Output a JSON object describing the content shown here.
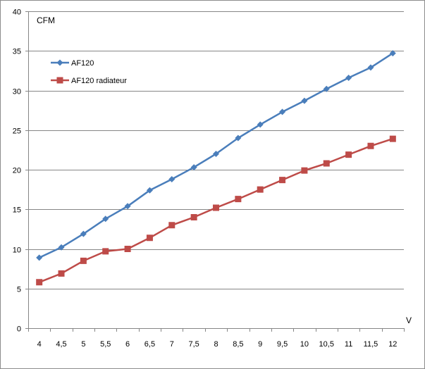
{
  "chart_data": {
    "type": "line",
    "title": "",
    "xlabel": "V",
    "ylabel": "CFM",
    "categories": [
      "4",
      "4,5",
      "5",
      "5,5",
      "6",
      "6,5",
      "7",
      "7,5",
      "8",
      "8,5",
      "9",
      "9,5",
      "10",
      "10,5",
      "11",
      "11,5",
      "12"
    ],
    "ylim": [
      0,
      40
    ],
    "yticks": [
      0,
      5,
      10,
      15,
      20,
      25,
      30,
      35,
      40
    ],
    "grid": "horizontal",
    "legend_position": "top-left",
    "series": [
      {
        "name": "AF120",
        "color": "#4a7ebb",
        "marker": "diamond",
        "values": [
          8.9,
          10.2,
          11.9,
          13.8,
          15.4,
          17.4,
          18.8,
          20.3,
          22.0,
          24.0,
          25.7,
          27.3,
          28.7,
          30.2,
          31.6,
          32.9,
          34.7
        ]
      },
      {
        "name": "AF120 radiateur",
        "color": "#be4b48",
        "marker": "square",
        "values": [
          5.8,
          6.9,
          8.5,
          9.7,
          10.0,
          11.4,
          13.0,
          14.0,
          15.2,
          16.3,
          17.5,
          18.7,
          19.9,
          20.8,
          21.9,
          23.0,
          23.9
        ]
      }
    ]
  }
}
